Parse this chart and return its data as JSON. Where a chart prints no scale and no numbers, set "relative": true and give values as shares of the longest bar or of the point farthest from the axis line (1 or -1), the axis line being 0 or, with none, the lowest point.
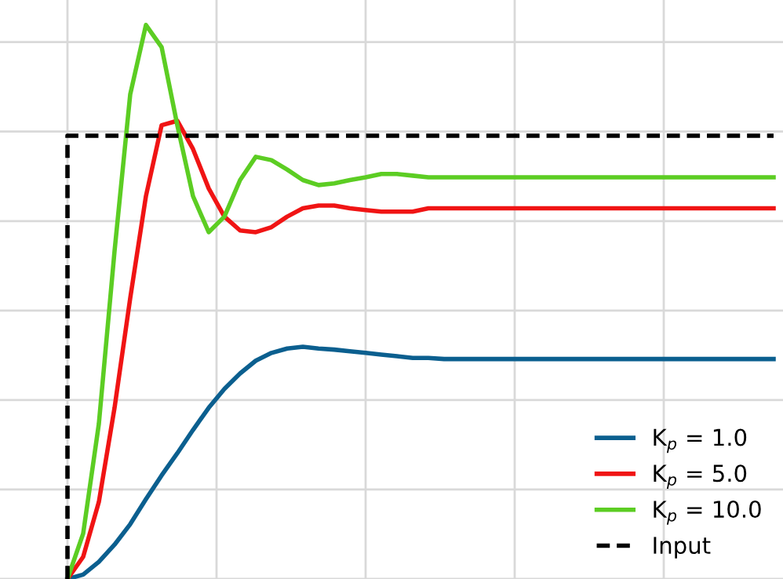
{
  "chart_data": {
    "type": "line",
    "relative": true,
    "grid": true,
    "legend": "bottom right",
    "marker": "none",
    "categories": [
      null,
      null,
      null,
      null,
      null,
      null,
      null,
      null,
      null,
      null,
      null,
      null,
      null,
      null,
      null,
      null,
      null,
      null,
      null,
      null,
      null,
      null,
      null,
      null,
      null,
      null,
      null,
      null,
      null,
      null,
      null,
      null,
      null,
      null,
      null,
      null,
      null,
      null,
      null,
      null,
      null,
      null,
      null,
      null,
      null,
      null,
      null,
      null,
      null,
      null
    ],
    "series": [
      {
        "name": "K$_{p}$ = 1.0",
        "color": "#0b5f8f",
        "line_style": "solid",
        "values": [
          null,
          null,
          null,
          null,
          0,
          0.008,
          0.031,
          0.062,
          0.099,
          0.144,
          0.187,
          0.227,
          0.269,
          0.309,
          0.343,
          0.371,
          0.394,
          0.408,
          0.416,
          0.419,
          0.416,
          0.414,
          0.411,
          0.408,
          0.405,
          0.402,
          0.399,
          0.399,
          0.397,
          0.397,
          0.397,
          0.397,
          0.397,
          0.397,
          0.397,
          0.397,
          0.397,
          0.397,
          0.397,
          0.397,
          0.397,
          0.397,
          0.397,
          0.397,
          0.397,
          0.397,
          0.397,
          0.397,
          0.397,
          0.397
        ]
      },
      {
        "name": "K$_{p}$ = 5.0",
        "color": "#f01414",
        "line_style": "solid",
        "values": [
          null,
          null,
          null,
          null,
          0,
          0.04,
          0.139,
          0.309,
          0.507,
          0.691,
          0.819,
          0.827,
          0.776,
          0.705,
          0.654,
          0.629,
          0.626,
          0.635,
          0.654,
          0.669,
          0.674,
          0.674,
          0.669,
          0.666,
          0.663,
          0.663,
          0.663,
          0.669,
          0.669,
          0.669,
          0.669,
          0.669,
          0.669,
          0.669,
          0.669,
          0.669,
          0.669,
          0.669,
          0.669,
          0.669,
          0.669,
          0.669,
          0.669,
          0.669,
          0.669,
          0.669,
          0.669,
          0.669,
          0.669,
          0.669
        ]
      },
      {
        "name": "K$_{p}$ = 10.0",
        "color": "#5ccd23",
        "line_style": "solid",
        "values": [
          null,
          null,
          null,
          null,
          0,
          0.082,
          0.28,
          0.592,
          0.875,
          1.0,
          0.96,
          0.819,
          0.691,
          0.626,
          0.654,
          0.72,
          0.762,
          0.756,
          0.739,
          0.72,
          0.711,
          0.714,
          0.72,
          0.725,
          0.731,
          0.731,
          0.728,
          0.725,
          0.725,
          0.725,
          0.725,
          0.725,
          0.725,
          0.725,
          0.725,
          0.725,
          0.725,
          0.725,
          0.725,
          0.725,
          0.725,
          0.725,
          0.725,
          0.725,
          0.725,
          0.725,
          0.725,
          0.725,
          0.725,
          0.725
        ]
      },
      {
        "name": "Input",
        "type": "step",
        "color": "#000000",
        "line_style": "dashed",
        "values": [
          null,
          null,
          null,
          null,
          0,
          0.8,
          0.8,
          0.8,
          0.8,
          0.8,
          0.8,
          0.8,
          0.8,
          0.8,
          0.8,
          0.8,
          0.8,
          0.8,
          0.8,
          0.8,
          0.8,
          0.8,
          0.8,
          0.8,
          0.8,
          0.8,
          0.8,
          0.8,
          0.8,
          0.8,
          0.8,
          0.8,
          0.8,
          0.8,
          0.8,
          0.8,
          0.8,
          0.8,
          0.8,
          0.8,
          0.8,
          0.8,
          0.8,
          0.8,
          0.8,
          0.8,
          0.8,
          0.8,
          0.8,
          0.8
        ]
      }
    ]
  }
}
